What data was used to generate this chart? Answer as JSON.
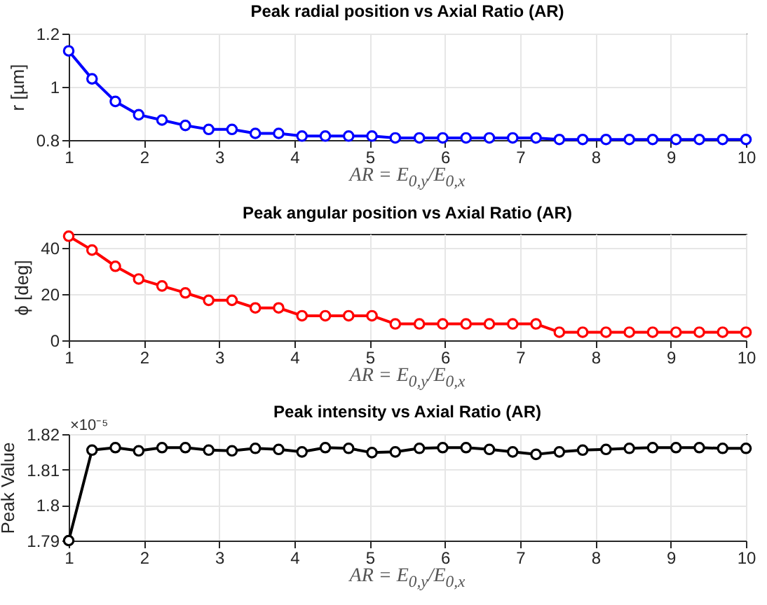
{
  "chart_data": [
    {
      "type": "line",
      "title": "Peak radial position vs Axial Ratio (AR)",
      "xlabel": "AR = E$_{0,y}$/E$_{0,x}$",
      "ylabel": "r [µm]",
      "x": [
        1,
        1.31,
        1.62,
        1.93,
        2.24,
        2.55,
        2.86,
        3.17,
        3.48,
        3.79,
        4.1,
        4.41,
        4.72,
        5.03,
        5.34,
        5.66,
        5.97,
        6.28,
        6.59,
        6.9,
        7.21,
        7.52,
        7.83,
        8.14,
        8.45,
        8.76,
        9.07,
        9.38,
        9.69,
        10
      ],
      "series": [
        {
          "color": "#0000ff",
          "values": [
            1.135,
            1.03,
            0.945,
            0.895,
            0.875,
            0.855,
            0.84,
            0.84,
            0.825,
            0.825,
            0.815,
            0.815,
            0.815,
            0.815,
            0.808,
            0.808,
            0.808,
            0.808,
            0.808,
            0.808,
            0.808,
            0.802,
            0.802,
            0.802,
            0.802,
            0.802,
            0.802,
            0.802,
            0.802,
            0.802
          ]
        }
      ],
      "xlim": [
        1,
        10
      ],
      "xticks": [
        1,
        2,
        3,
        4,
        5,
        6,
        7,
        8,
        9,
        10
      ],
      "ylim": [
        0.8,
        1.2
      ],
      "yticks": [
        0.8,
        1,
        1.2
      ],
      "grid": true,
      "marker": "circle",
      "line_style": "solid"
    },
    {
      "type": "line",
      "title": "Peak angular position vs Axial Ratio (AR)",
      "xlabel": "AR = E$_{0,y}$/E$_{0,x}$",
      "ylabel": "ϕ [deg]",
      "x": [
        1,
        1.31,
        1.62,
        1.93,
        2.24,
        2.55,
        2.86,
        3.17,
        3.48,
        3.79,
        4.1,
        4.41,
        4.72,
        5.03,
        5.34,
        5.66,
        5.97,
        6.28,
        6.59,
        6.9,
        7.21,
        7.52,
        7.83,
        8.14,
        8.45,
        8.76,
        9.07,
        9.38,
        9.69,
        10
      ],
      "series": [
        {
          "color": "#ff0000",
          "values": [
            45,
            39,
            32,
            26.5,
            23.5,
            20.5,
            17.3,
            17.3,
            14,
            14,
            10.6,
            10.6,
            10.6,
            10.6,
            7.1,
            7.1,
            7.1,
            7.1,
            7.1,
            7.1,
            7.1,
            3.5,
            3.5,
            3.5,
            3.5,
            3.5,
            3.5,
            3.5,
            3.5,
            3.5
          ]
        }
      ],
      "xlim": [
        1,
        10
      ],
      "xticks": [
        1,
        2,
        3,
        4,
        5,
        6,
        7,
        8,
        9,
        10
      ],
      "ylim": [
        0,
        46
      ],
      "yticks": [
        0,
        20,
        40
      ],
      "grid": true,
      "marker": "circle",
      "line_style": "solid"
    },
    {
      "type": "line",
      "title": "Peak intensity vs Axial Ratio (AR)",
      "xlabel": "AR = E$_{0,y}$/E$_{0,x}$",
      "ylabel": "Peak Value",
      "annotations": [
        "×10⁻⁵"
      ],
      "x": [
        1,
        1.31,
        1.62,
        1.93,
        2.24,
        2.55,
        2.86,
        3.17,
        3.48,
        3.79,
        4.1,
        4.41,
        4.72,
        5.03,
        5.34,
        5.66,
        5.97,
        6.28,
        6.59,
        6.9,
        7.21,
        7.52,
        7.83,
        8.14,
        8.45,
        8.76,
        9.07,
        9.38,
        9.69,
        10
      ],
      "series": [
        {
          "color": "#000000",
          "values": [
            1.79,
            1.8155,
            1.8162,
            1.8153,
            1.8162,
            1.8162,
            1.8155,
            1.8153,
            1.816,
            1.8157,
            1.815,
            1.8162,
            1.816,
            1.8148,
            1.815,
            1.816,
            1.8162,
            1.8162,
            1.8157,
            1.815,
            1.8143,
            1.815,
            1.8155,
            1.8157,
            1.816,
            1.8162,
            1.8162,
            1.8162,
            1.816,
            1.816
          ]
        }
      ],
      "xlim": [
        1,
        10
      ],
      "xticks": [
        1,
        2,
        3,
        4,
        5,
        6,
        7,
        8,
        9,
        10
      ],
      "ylim": [
        1.79,
        1.82
      ],
      "yticks": [
        1.79,
        1.8,
        1.81,
        1.82
      ],
      "grid": true,
      "marker": "circle",
      "line_style": "solid"
    }
  ]
}
